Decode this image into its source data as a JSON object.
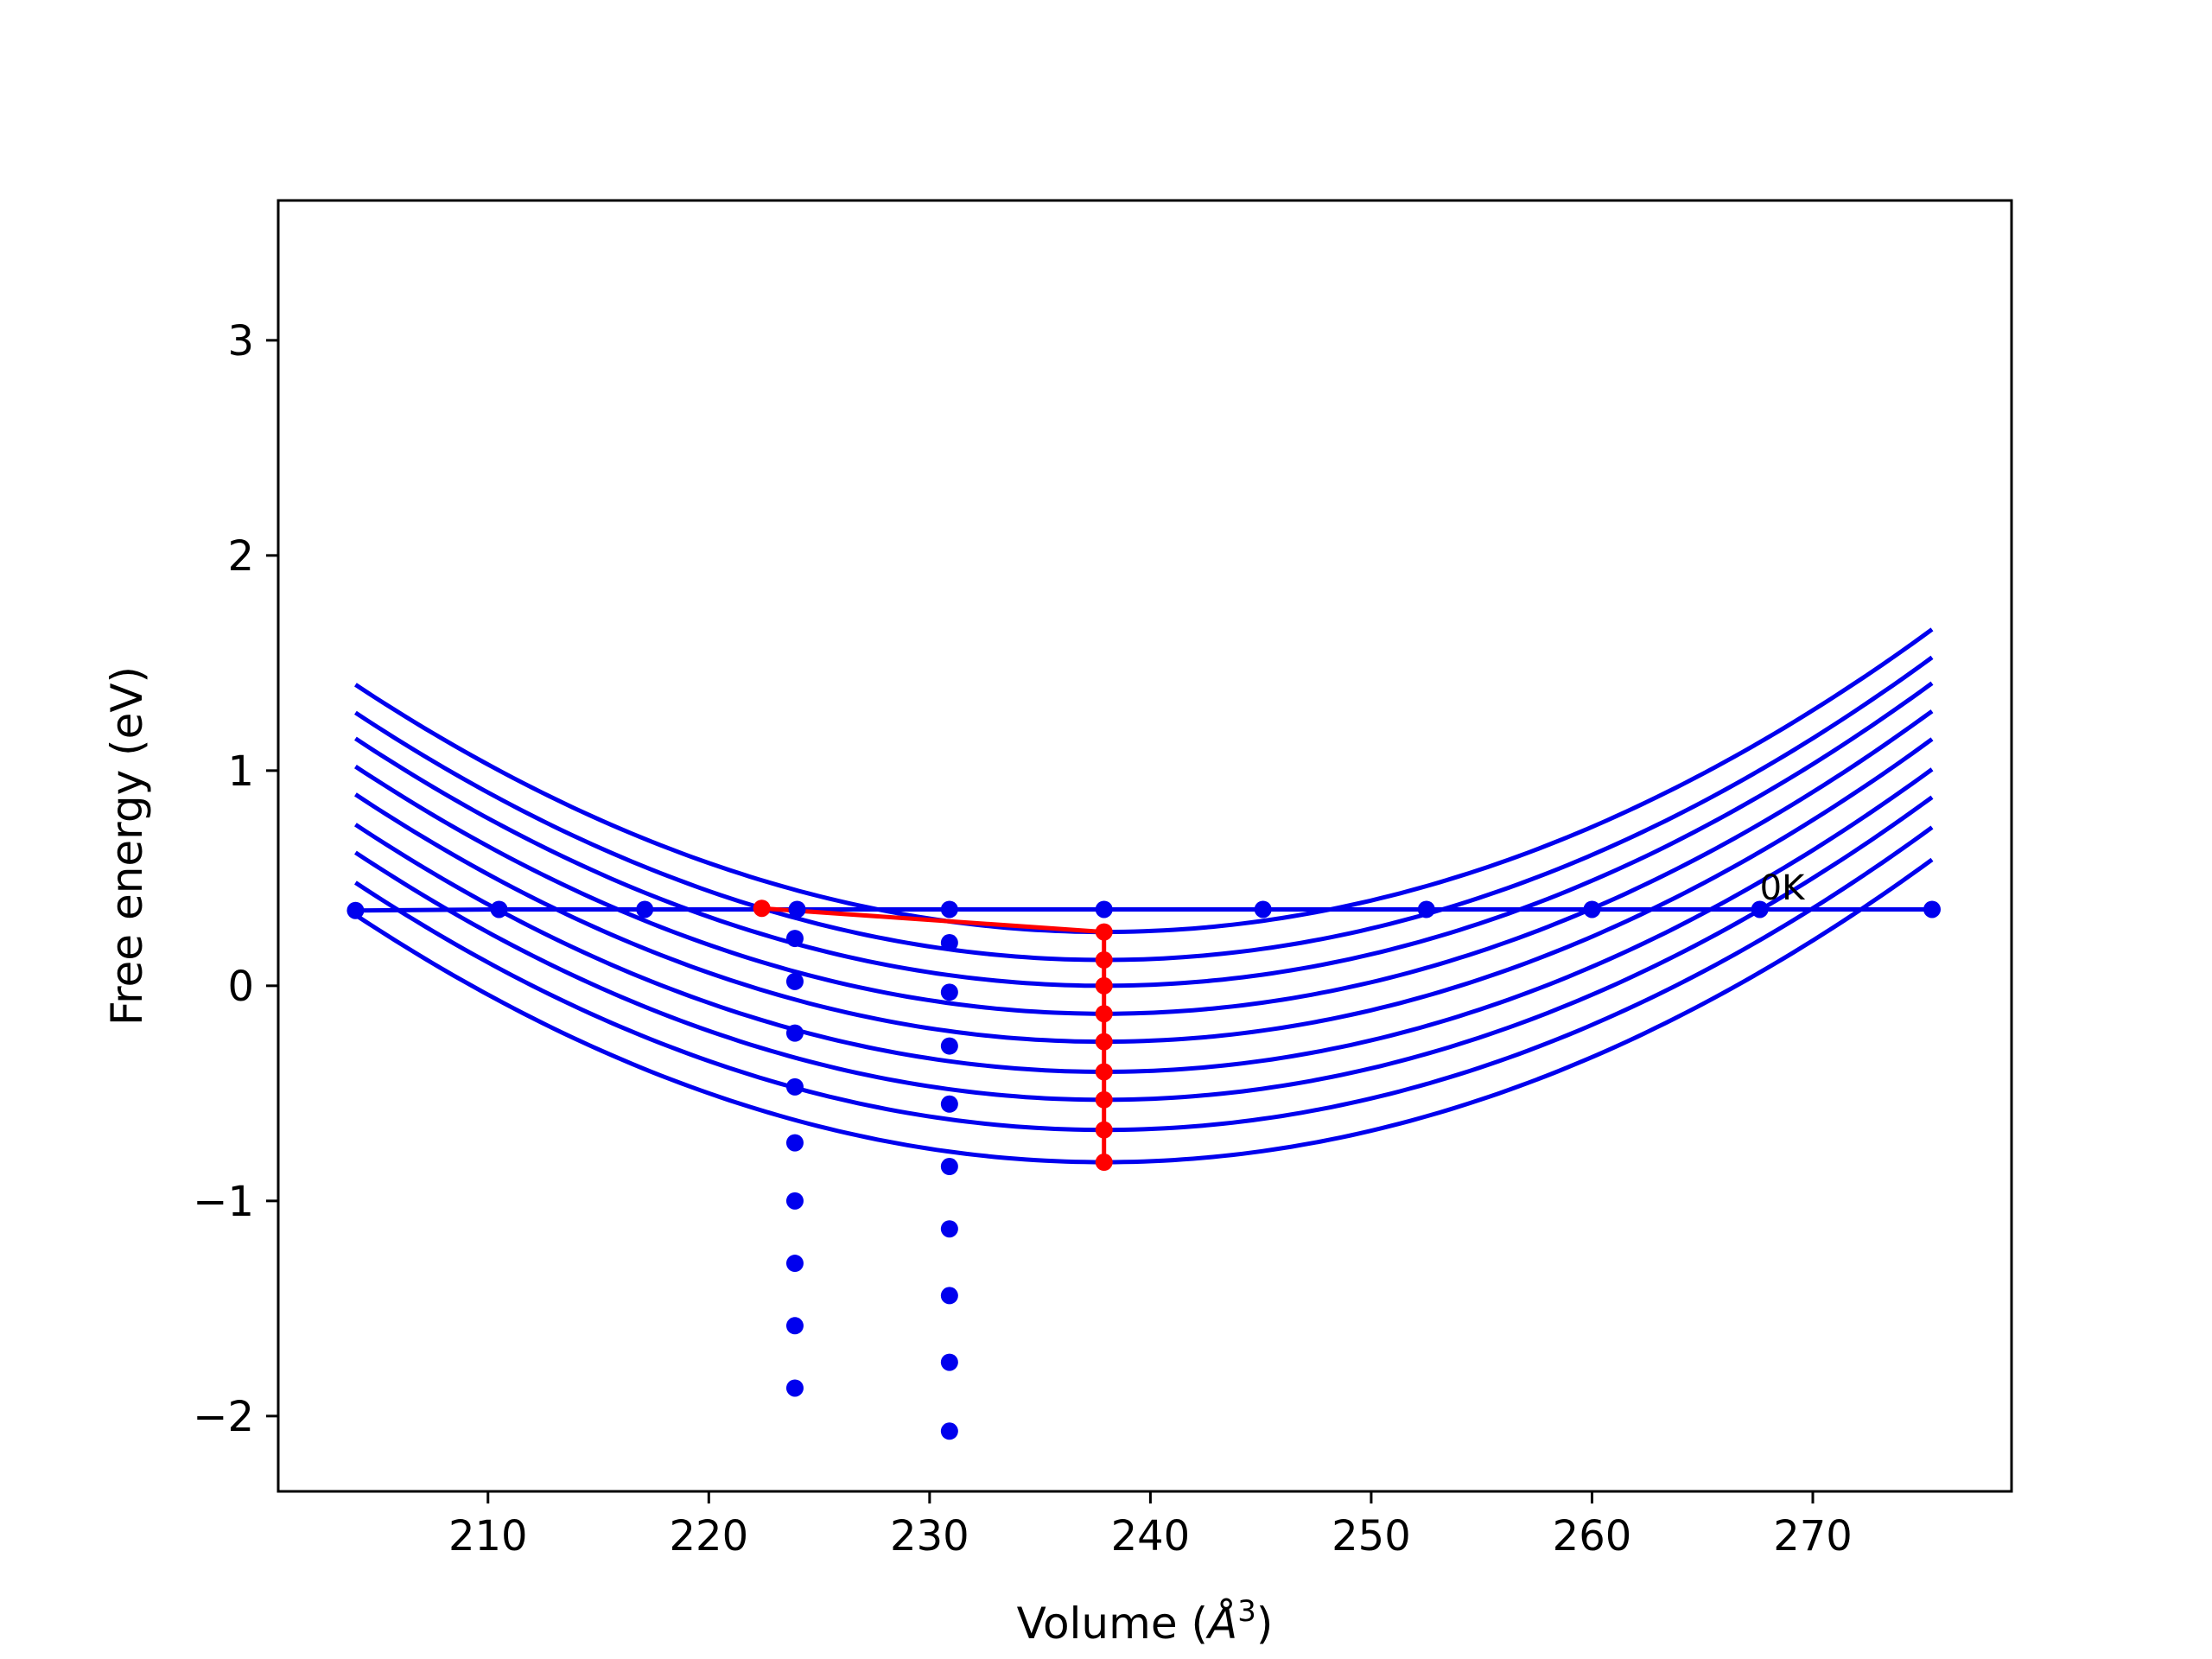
{
  "chart_data": {
    "type": "line",
    "xlabel": "Volume (",
    "xlabel_unit": "Å",
    "xlabel_sup": "3",
    "xlabel_close": ")",
    "ylabel": "Free energy (eV)",
    "xlim": [
      200.5,
      279
    ],
    "ylim": [
      -2.35,
      3.65
    ],
    "x_ticks": [
      210,
      220,
      230,
      240,
      250,
      260,
      270
    ],
    "y_ticks": [
      -2,
      -1,
      0,
      1,
      2,
      3
    ],
    "x_tick_labels": [
      "210",
      "220",
      "230",
      "240",
      "250",
      "260",
      "270"
    ],
    "y_tick_labels": [
      "−2",
      "−1",
      "0",
      "1",
      "2",
      "3"
    ],
    "grid": false,
    "legend": "none",
    "colors": {
      "curves": "#0000ee",
      "path": "#ff0000",
      "axes": "#000000"
    },
    "series": [
      {
        "type": "line-with-markers",
        "color": "#0000ee",
        "x": [
          204,
          210.5,
          217.1,
          224,
          230.9,
          237.9,
          245.1,
          252.5,
          260,
          267.6,
          275.4
        ],
        "y": [
          0.35,
          0.355,
          0.355,
          0.355,
          0.355,
          0.355,
          0.355,
          0.355,
          0.355,
          0.355,
          0.355
        ]
      },
      {
        "type": "curve-family",
        "color": "#0000ee",
        "x_range": [
          204,
          275.4
        ],
        "curvature": 0.001,
        "x_min": 237.9,
        "minima": [
          0.25,
          0.12,
          0.0,
          -0.13,
          -0.26,
          -0.4,
          -0.53,
          -0.67,
          -0.82
        ],
        "markers_at_x": [
          237.9
        ]
      },
      {
        "type": "scatter",
        "color": "#0000ee",
        "x": [
          223.9,
          223.9,
          223.9,
          223.9,
          223.9,
          223.9,
          223.9,
          223.9,
          223.9
        ],
        "y": [
          0.22,
          0.02,
          -0.22,
          -0.47,
          -0.73,
          -1.0,
          -1.29,
          -1.58,
          -1.87
        ]
      },
      {
        "type": "scatter",
        "color": "#0000ee",
        "x": [
          230.9,
          230.9,
          230.9,
          230.9,
          230.9,
          230.9,
          230.9,
          230.9,
          230.9
        ],
        "y": [
          0.2,
          -0.03,
          -0.28,
          -0.55,
          -0.84,
          -1.13,
          -1.44,
          -1.75,
          -2.07
        ]
      },
      {
        "type": "line-with-markers",
        "color": "#ff0000",
        "x": [
          222.4,
          237.9,
          237.9,
          237.9,
          237.9,
          237.9,
          237.9,
          237.9,
          237.9,
          237.9
        ],
        "y": [
          0.36,
          0.25,
          0.12,
          0.0,
          -0.13,
          -0.26,
          -0.4,
          -0.53,
          -0.67,
          -0.82
        ]
      }
    ],
    "annotations": [
      {
        "text": "0K",
        "x": 267.6,
        "y": 0.36
      }
    ]
  }
}
